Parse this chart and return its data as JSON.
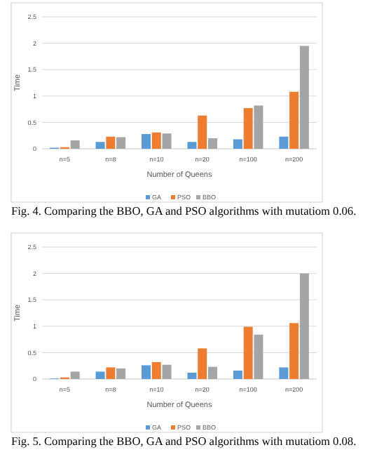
{
  "chart_data": [
    {
      "type": "bar",
      "xlabel": "Number of Queens",
      "ylabel": "Time",
      "categories": [
        "n=5",
        "n=8",
        "n=10",
        "n=20",
        "n=100",
        "n=200"
      ],
      "series": [
        {
          "name": "GA",
          "color": "#5b9bd5",
          "values": [
            0.02,
            0.13,
            0.28,
            0.13,
            0.18,
            0.23
          ]
        },
        {
          "name": "PSO",
          "color": "#ed7d31",
          "values": [
            0.03,
            0.23,
            0.31,
            0.63,
            0.77,
            1.08
          ]
        },
        {
          "name": "BBO",
          "color": "#a5a5a5",
          "values": [
            0.16,
            0.22,
            0.29,
            0.2,
            0.82,
            1.95
          ]
        }
      ],
      "ylim": [
        0,
        2.5
      ],
      "yticks": [
        0,
        0.5,
        1,
        1.5,
        2,
        2.5
      ],
      "grid": "y",
      "legend": "bottom",
      "annotations": [
        "Fig. 4. Comparing the BBO, GA and PSO algorithms with mutatiom 0.06."
      ]
    },
    {
      "type": "bar",
      "xlabel": "Number of Queens",
      "ylabel": "Time",
      "categories": [
        "n=5",
        "n=8",
        "n=10",
        "n=20",
        "n=100",
        "n=200"
      ],
      "series": [
        {
          "name": "GA",
          "color": "#5b9bd5",
          "values": [
            0.01,
            0.14,
            0.26,
            0.12,
            0.16,
            0.22
          ]
        },
        {
          "name": "PSO",
          "color": "#ed7d31",
          "values": [
            0.03,
            0.22,
            0.32,
            0.58,
            0.99,
            1.06
          ]
        },
        {
          "name": "BBO",
          "color": "#a5a5a5",
          "values": [
            0.14,
            0.2,
            0.27,
            0.23,
            0.84,
            2.0
          ]
        }
      ],
      "ylim": [
        0,
        2.5
      ],
      "yticks": [
        0,
        0.5,
        1,
        1.5,
        2,
        2.5
      ],
      "grid": "y",
      "legend": "bottom",
      "annotations": [
        "Fig. 5. Comparing the BBO, GA and PSO algorithms with mutatiom 0.08."
      ]
    }
  ]
}
